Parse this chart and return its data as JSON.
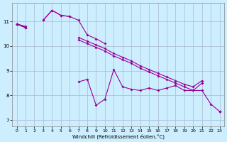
{
  "xlabel": "Windchill (Refroidissement éolien,°C)",
  "background_color": "#cceeff",
  "grid_color": "#aabbcc",
  "line_color": "#990099",
  "x_hours": [
    0,
    1,
    2,
    3,
    4,
    5,
    6,
    7,
    8,
    9,
    10,
    11,
    12,
    13,
    14,
    15,
    16,
    17,
    18,
    19,
    20,
    21,
    22,
    23
  ],
  "line1": [
    10.9,
    10.8,
    null,
    11.05,
    11.45,
    11.25,
    11.2,
    null,
    null,
    null,
    null,
    null,
    null,
    null,
    null,
    null,
    null,
    null,
    null,
    null,
    null,
    null,
    null,
    null
  ],
  "line2": [
    10.9,
    null,
    null,
    11.05,
    11.45,
    11.25,
    11.2,
    11.05,
    10.45,
    10.3,
    10.1,
    null,
    null,
    null,
    null,
    null,
    null,
    null,
    null,
    null,
    null,
    null,
    null,
    null
  ],
  "line3_smooth": [
    10.9,
    10.75,
    null,
    null,
    null,
    null,
    null,
    10.35,
    10.2,
    10.05,
    9.9,
    9.7,
    9.55,
    9.4,
    9.2,
    9.05,
    8.9,
    8.75,
    8.6,
    8.45,
    8.35,
    8.6,
    null,
    7.35
  ],
  "line3_smooth2": [
    10.9,
    10.75,
    null,
    null,
    null,
    null,
    null,
    10.25,
    10.1,
    9.95,
    9.8,
    9.6,
    9.45,
    9.3,
    9.1,
    8.95,
    8.8,
    8.65,
    8.5,
    8.35,
    8.2,
    8.5,
    null,
    7.35
  ],
  "line4_zigzag": [
    10.9,
    10.75,
    null,
    null,
    null,
    null,
    null,
    8.55,
    8.65,
    7.6,
    7.85,
    9.05,
    8.35,
    8.25,
    8.2,
    8.3,
    8.2,
    8.3,
    8.4,
    8.2,
    8.2,
    8.2,
    7.65,
    7.35
  ],
  "ylim": [
    6.75,
    11.75
  ],
  "xlim": [
    -0.5,
    23.5
  ],
  "yticks": [
    7,
    8,
    9,
    10,
    11
  ],
  "xticks": [
    0,
    1,
    2,
    3,
    4,
    5,
    6,
    7,
    8,
    9,
    10,
    11,
    12,
    13,
    14,
    15,
    16,
    17,
    18,
    19,
    20,
    21,
    22,
    23
  ]
}
